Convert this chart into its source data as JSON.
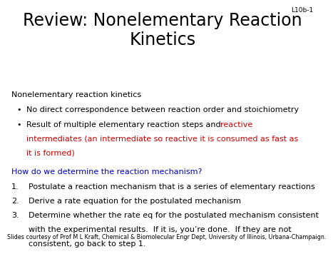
{
  "title_line1": "Review: Nonelementary Reaction",
  "title_line2": "Kinetics",
  "slide_id": "L10b-1",
  "background_color": "#ffffff",
  "title_color": "#000000",
  "title_fontsize": 17,
  "slide_id_fontsize": 6.5,
  "body_fontsize": 8,
  "small_fontsize": 5.8,
  "black": "#000000",
  "red": "#cc0000",
  "blue": "#0000cc",
  "section1_header": "Nonelementary reaction kinetics",
  "bullet1": "No direct correspondence between reaction order and stoichiometry",
  "bullet2_black": "Result of multiple elementary reaction steps and ",
  "bullet2_red_line1": "reactive",
  "bullet2_red_line2": "intermediates (an intermediate so reactive it is consumed as fast as",
  "bullet2_red_line3": "it is formed)",
  "section2_header": "How do we determine the reaction mechanism?",
  "item1": "Postulate a reaction mechanism that is a series of elementary reactions",
  "item2": "Derive a rate equation for the postulated mechanism",
  "item3_line1": "Determine whether the rate eq for the postulated mechanism consistent",
  "item3_line2": "with the experimental results.  If it is, you’re done.  If they are not",
  "item3_line3": "consistent, go back to step 1.",
  "footer": "Slides courtesy of Prof M L Kraft, Chemical & Biomolecular Engr Dept, University of Illinois, Urbana-Champaign."
}
